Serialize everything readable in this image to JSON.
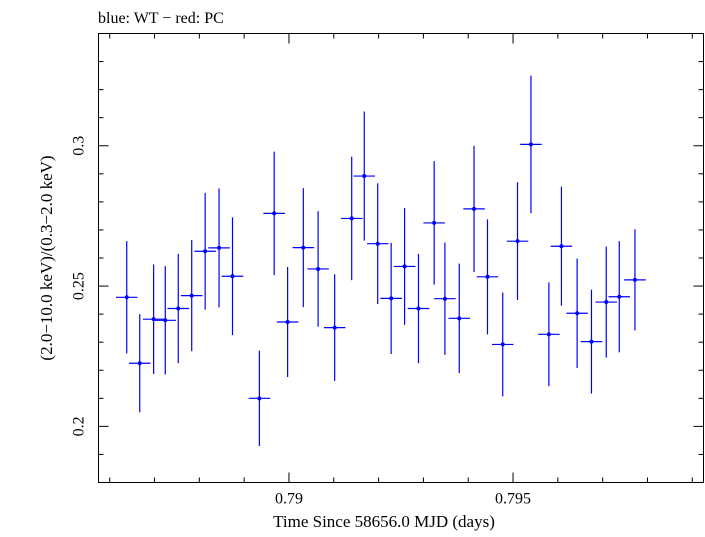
{
  "chart_data": {
    "type": "scatter",
    "title": "blue: WT − red: PC",
    "xlabel": "Time Since 58656.0 MJD (days)",
    "ylabel": "(2.0−10.0 keV)/(0.3−2.0 keV)",
    "xlim": [
      0.78575,
      0.79925
    ],
    "ylim": [
      0.18,
      0.34
    ],
    "xticks": [
      0.79,
      0.795
    ],
    "xtick_labels": [
      "0.79",
      "0.795"
    ],
    "yticks": [
      0.2,
      0.25,
      0.3
    ],
    "ytick_labels": [
      "0.2",
      "0.25",
      "0.3"
    ],
    "grid": false,
    "series": [
      {
        "color": "#0000ff",
        "x_halfwidth": 0.00024,
        "points": [
          {
            "x": 0.78638,
            "y": 0.246,
            "err": 0.02
          },
          {
            "x": 0.78667,
            "y": 0.2225,
            "err": 0.0175
          },
          {
            "x": 0.78698,
            "y": 0.2382,
            "err": 0.0195
          },
          {
            "x": 0.78724,
            "y": 0.2378,
            "err": 0.0193
          },
          {
            "x": 0.78753,
            "y": 0.242,
            "err": 0.0195
          },
          {
            "x": 0.78783,
            "y": 0.2466,
            "err": 0.0198
          },
          {
            "x": 0.78813,
            "y": 0.2624,
            "err": 0.0208
          },
          {
            "x": 0.78844,
            "y": 0.2636,
            "err": 0.0212
          },
          {
            "x": 0.78874,
            "y": 0.2535,
            "err": 0.021
          },
          {
            "x": 0.78934,
            "y": 0.21,
            "err": 0.017
          },
          {
            "x": 0.78967,
            "y": 0.2759,
            "err": 0.022
          },
          {
            "x": 0.78997,
            "y": 0.2372,
            "err": 0.0196
          },
          {
            "x": 0.79032,
            "y": 0.2637,
            "err": 0.0212
          },
          {
            "x": 0.79065,
            "y": 0.2561,
            "err": 0.0206
          },
          {
            "x": 0.79102,
            "y": 0.2352,
            "err": 0.019
          },
          {
            "x": 0.7914,
            "y": 0.2741,
            "err": 0.022
          },
          {
            "x": 0.79168,
            "y": 0.2892,
            "err": 0.023
          },
          {
            "x": 0.79198,
            "y": 0.2651,
            "err": 0.0215
          },
          {
            "x": 0.79228,
            "y": 0.2456,
            "err": 0.0198
          },
          {
            "x": 0.79258,
            "y": 0.257,
            "err": 0.0208
          },
          {
            "x": 0.79289,
            "y": 0.242,
            "err": 0.0195
          },
          {
            "x": 0.79324,
            "y": 0.2725,
            "err": 0.022
          },
          {
            "x": 0.79348,
            "y": 0.2455,
            "err": 0.02
          },
          {
            "x": 0.7938,
            "y": 0.2385,
            "err": 0.0195
          },
          {
            "x": 0.79413,
            "y": 0.2775,
            "err": 0.0225
          },
          {
            "x": 0.79443,
            "y": 0.2533,
            "err": 0.0205
          },
          {
            "x": 0.79477,
            "y": 0.2292,
            "err": 0.0185
          },
          {
            "x": 0.7951,
            "y": 0.266,
            "err": 0.021
          },
          {
            "x": 0.7954,
            "y": 0.3005,
            "err": 0.0245
          },
          {
            "x": 0.7958,
            "y": 0.2328,
            "err": 0.0185
          },
          {
            "x": 0.79608,
            "y": 0.2642,
            "err": 0.0212
          },
          {
            "x": 0.79643,
            "y": 0.2403,
            "err": 0.0195
          },
          {
            "x": 0.79675,
            "y": 0.2302,
            "err": 0.0185
          },
          {
            "x": 0.79708,
            "y": 0.2443,
            "err": 0.0198
          },
          {
            "x": 0.79737,
            "y": 0.2462,
            "err": 0.0198
          },
          {
            "x": 0.79772,
            "y": 0.2522,
            "err": 0.018
          }
        ]
      }
    ]
  }
}
